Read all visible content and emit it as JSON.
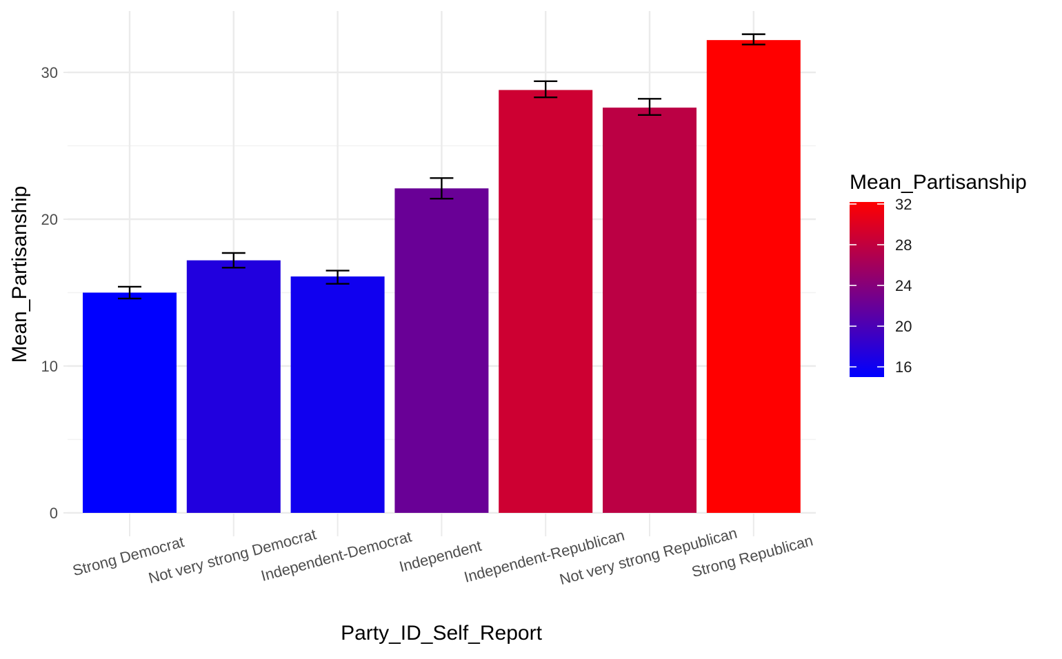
{
  "chart_data": {
    "type": "bar",
    "xlabel": "Party_ID_Self_Report",
    "ylabel": "Mean_Partisanship",
    "ylim": [
      0,
      33.5
    ],
    "y_ticks": [
      0,
      10,
      20,
      30
    ],
    "grid": true,
    "legend_placement": "right",
    "categories": [
      "Strong Democrat",
      "Not very strong Democrat",
      "Independent-Democrat",
      "Independent",
      "Independent-Republican",
      "Not very strong Republican",
      "Strong Republican"
    ],
    "values": [
      15.0,
      17.2,
      16.1,
      22.1,
      28.8,
      27.6,
      32.2
    ],
    "error_bars": [
      {
        "low": 14.6,
        "high": 15.4
      },
      {
        "low": 16.7,
        "high": 17.7
      },
      {
        "low": 15.6,
        "high": 16.5
      },
      {
        "low": 21.4,
        "high": 22.8
      },
      {
        "low": 28.3,
        "high": 29.4
      },
      {
        "low": 27.1,
        "high": 28.2
      },
      {
        "low": 31.9,
        "high": 32.6
      }
    ],
    "legend": {
      "title": "Mean_Partisanship",
      "ticks": [
        16,
        20,
        24,
        28,
        32
      ],
      "range": [
        15.0,
        32.2
      ],
      "low_color": "#0000ff",
      "high_color": "#ff0000"
    }
  }
}
